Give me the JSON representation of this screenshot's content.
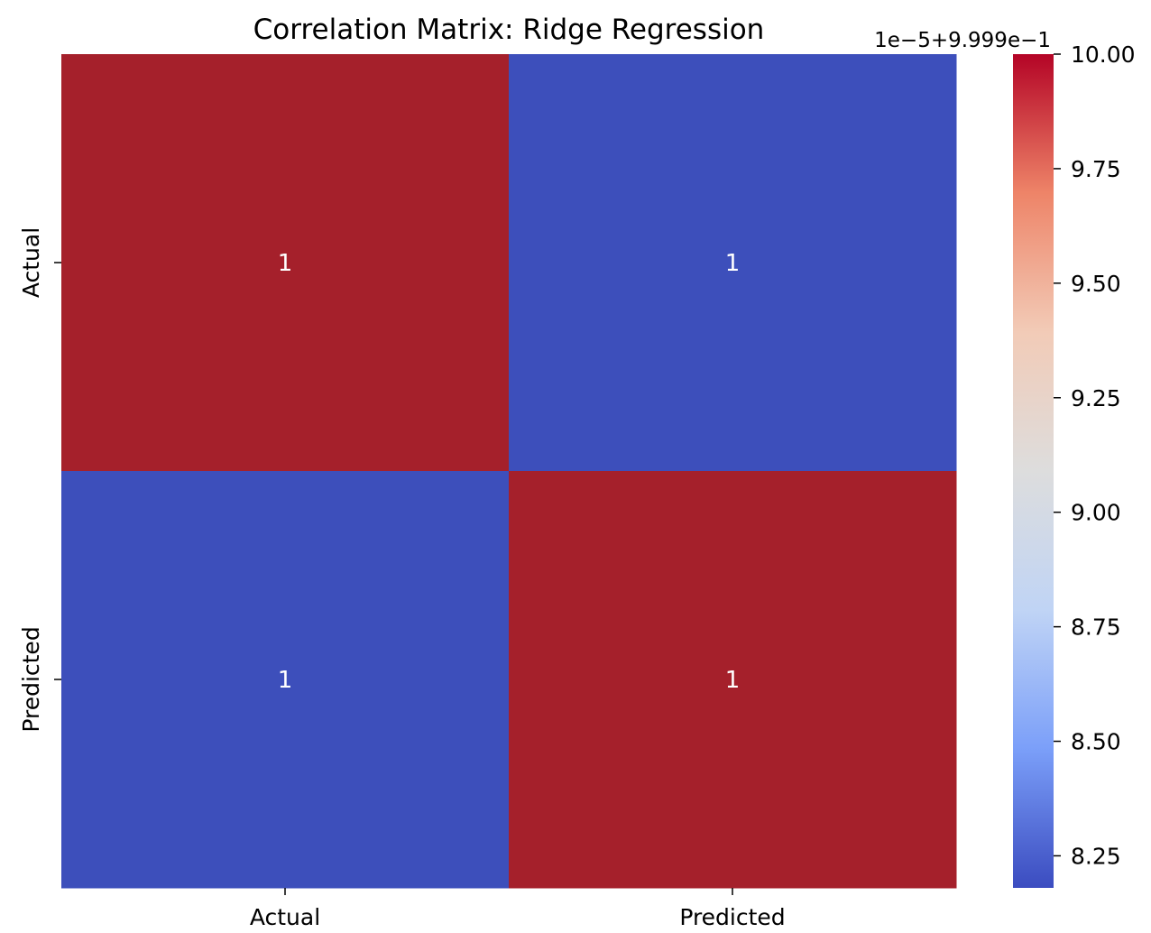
{
  "chart_data": {
    "type": "heatmap",
    "title": "Correlation Matrix: Ridge Regression",
    "x_categories": [
      "Actual",
      "Predicted"
    ],
    "y_categories": [
      "Actual",
      "Predicted"
    ],
    "cells": [
      {
        "row": 0,
        "col": 0,
        "annotation": "1",
        "level": 1.0
      },
      {
        "row": 0,
        "col": 1,
        "annotation": "1",
        "level": 0.0
      },
      {
        "row": 1,
        "col": 0,
        "annotation": "1",
        "level": 0.0
      },
      {
        "row": 1,
        "col": 1,
        "annotation": "1",
        "level": 1.0
      }
    ],
    "colormap": "coolwarm",
    "colormap_stops": [
      "#3b4cc0",
      "#7b9ff9",
      "#c0d4f5",
      "#dddddd",
      "#f2cbb7",
      "#ee8468",
      "#b40426"
    ],
    "colors": {
      "high": "#a5202b",
      "low": "#3d4fbb",
      "annotation_text": "#ffffff"
    },
    "colorbar": {
      "offset_label": "1e−5+9.999e−1",
      "range": [
        8.18,
        10.0
      ],
      "ticks": [
        {
          "value": 10.0,
          "label": "10.00"
        },
        {
          "value": 9.75,
          "label": "9.75"
        },
        {
          "value": 9.5,
          "label": "9.50"
        },
        {
          "value": 9.25,
          "label": "9.25"
        },
        {
          "value": 9.0,
          "label": "9.00"
        },
        {
          "value": 8.75,
          "label": "8.75"
        },
        {
          "value": 8.5,
          "label": "8.50"
        },
        {
          "value": 8.25,
          "label": "8.25"
        }
      ]
    }
  }
}
